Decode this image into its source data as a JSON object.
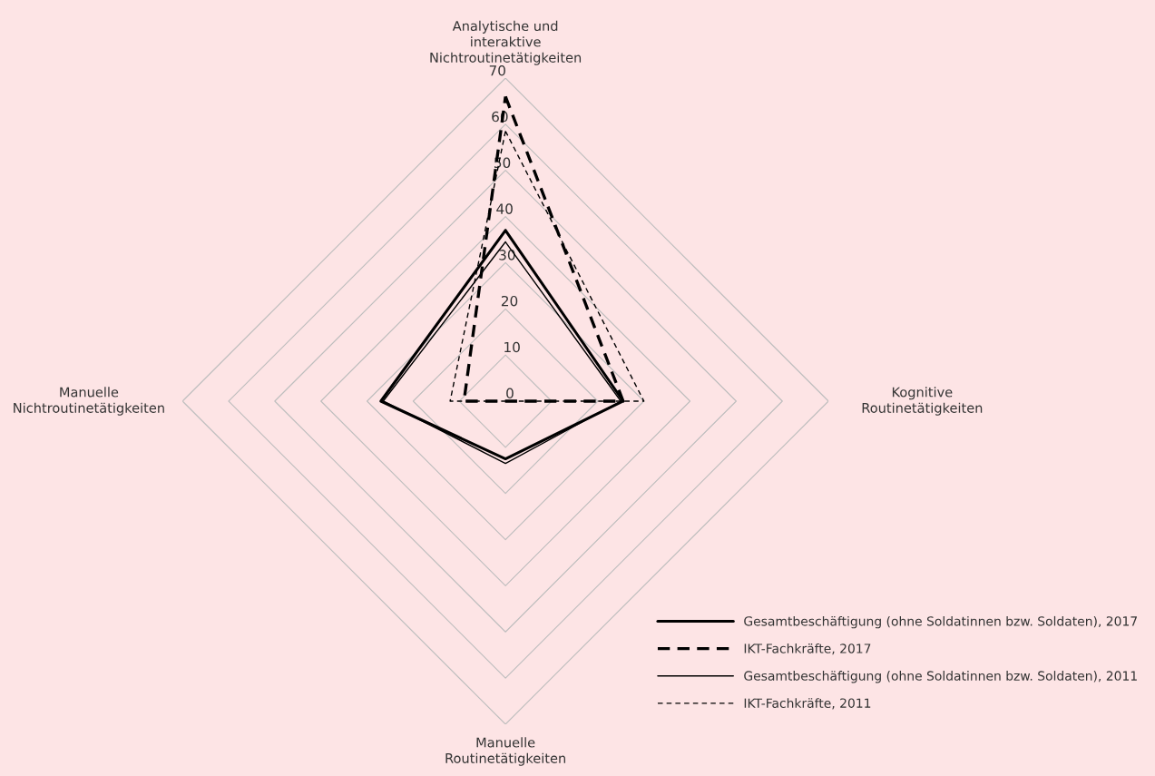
{
  "chart_data": {
    "type": "radar",
    "categories": [
      "Analytische und\ninteraktive\nNichtroutinetätigkeiten",
      "Kognitive\nRoutinetätigkeiten",
      "Manuelle\nRoutinetätigkeiten",
      "Manuelle\nNichtroutinetätigkeiten"
    ],
    "series": [
      {
        "name": "Gesamtbeschäftigung (ohne Soldatinnen bzw. Soldaten), 2017",
        "color": "#000000",
        "line_style": "solid",
        "values": [
          37,
          25.5,
          12.5,
          27
        ]
      },
      {
        "name": "IKT-Fachkräfte, 2017",
        "color": "#000000",
        "line_style": "dashed",
        "values": [
          66,
          25.5,
          0,
          9
        ]
      },
      {
        "name": "Gesamtbeschäftigung (ohne Soldatinnen bzw. Soldaten), 2011",
        "color": "#000000",
        "line_style": "solid",
        "values": [
          34.5,
          25,
          13.5,
          26.5
        ]
      },
      {
        "name": "IKT-Fachkräfte, 2011",
        "color": "#000000",
        "line_style": "dotted",
        "values": [
          58.5,
          30,
          0,
          12
        ]
      }
    ],
    "ylim": [
      0,
      70
    ],
    "yticks": [
      0,
      10,
      20,
      30,
      40,
      50,
      60,
      70
    ],
    "grid": true,
    "legend": "bottom right"
  }
}
